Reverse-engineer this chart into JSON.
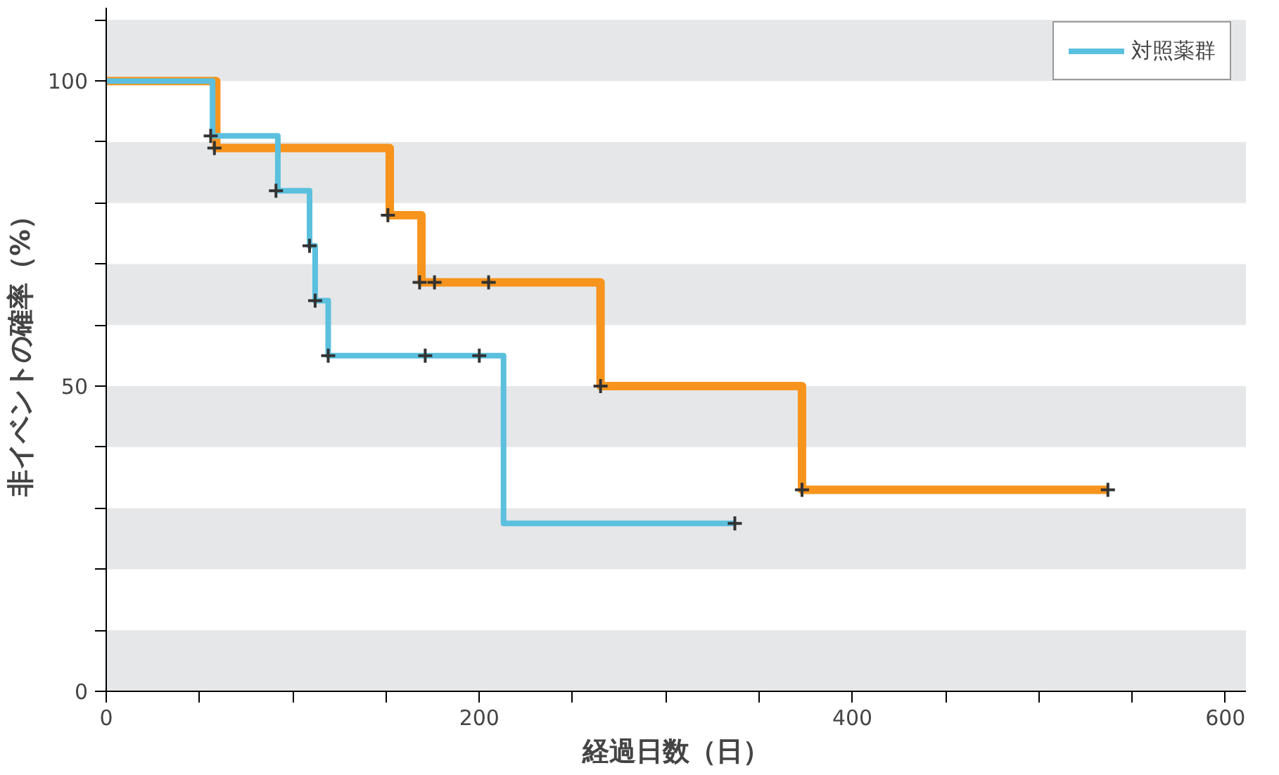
{
  "chart_data": {
    "type": "step",
    "xlabel": "経過日数（日）",
    "ylabel": "非イベントの確率（%）",
    "xlim": [
      0,
      611
    ],
    "ylim": [
      0,
      112
    ],
    "xticks": [
      0,
      {
        "value": 50,
        "label": null
      },
      {
        "value": 100,
        "label": null
      },
      {
        "value": 150,
        "label": null
      },
      200,
      {
        "value": 250,
        "label": null
      },
      {
        "value": 300,
        "label": null
      },
      {
        "value": 350,
        "label": null
      },
      400,
      {
        "value": 450,
        "label": null
      },
      {
        "value": 500,
        "label": null
      },
      {
        "value": 550,
        "label": null
      },
      600
    ],
    "yticks": [
      0,
      {
        "value": 10,
        "label": null
      },
      {
        "value": 20,
        "label": null
      },
      {
        "value": 30,
        "label": null
      },
      {
        "value": 40,
        "label": null
      },
      50,
      {
        "value": 60,
        "label": null
      },
      {
        "value": 70,
        "label": null
      },
      {
        "value": 80,
        "label": null
      },
      {
        "value": 90,
        "label": null
      },
      100,
      {
        "value": 110,
        "label": null
      }
    ],
    "bands": [
      {
        "axis": "y",
        "from": 0,
        "to": 10,
        "color": "#e6e7e8"
      },
      {
        "axis": "y",
        "from": 20,
        "to": 30,
        "color": "#e6e7e8"
      },
      {
        "axis": "y",
        "from": 40,
        "to": 50,
        "color": "#e6e7e8"
      },
      {
        "axis": "y",
        "from": 60,
        "to": 70,
        "color": "#e6e7e8"
      },
      {
        "axis": "y",
        "from": 80,
        "to": 90,
        "color": "#e6e7e8"
      },
      {
        "axis": "y",
        "from": 100,
        "to": 110,
        "color": "#e6e7e8"
      }
    ],
    "grid": false,
    "legend": "top right",
    "series": [
      {
        "name": "対照薬群",
        "color": "#5bc0de",
        "x": [
          0,
          57,
          92,
          109,
          112,
          119,
          213,
          337
        ],
        "values": [
          100,
          91,
          82,
          73,
          64,
          55,
          27.5,
          27.5
        ]
      },
      {
        "color": "#f7941d",
        "x": [
          0,
          59,
          152,
          169,
          265,
          373,
          537
        ],
        "values": [
          100,
          89,
          78,
          67,
          50,
          33,
          33
        ]
      },
      {
        "type": "scatter",
        "marker": "cross",
        "color": "#333333",
        "x": [
          56,
          91,
          109,
          112,
          119,
          171,
          200,
          337
        ],
        "values": [
          91,
          82,
          73,
          64,
          55,
          55,
          55,
          27.5
        ]
      },
      {
        "type": "scatter",
        "marker": "cross",
        "color": "#333333",
        "x": [
          58,
          151,
          168,
          176,
          205,
          265,
          373,
          537
        ],
        "values": [
          89,
          78,
          67,
          67,
          67,
          50,
          33,
          33
        ]
      }
    ]
  }
}
